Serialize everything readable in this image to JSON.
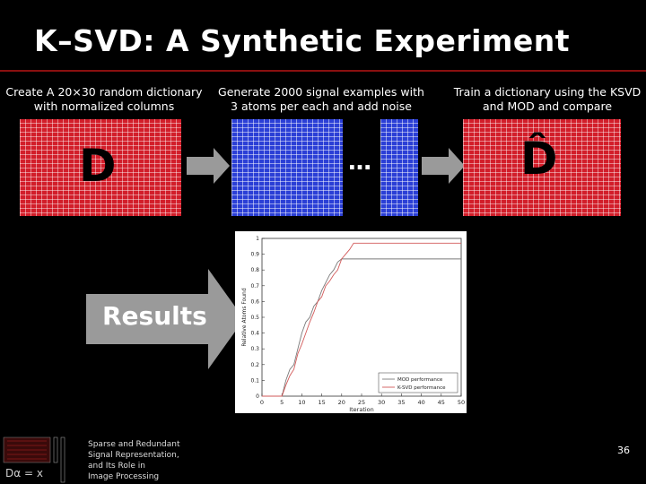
{
  "slide": {
    "title": "K–SVD: A Synthetic Experiment",
    "page_number": "36"
  },
  "steps": [
    {
      "caption_line1": "Create A 20×30 random dictionary",
      "caption_line2": "with normalized columns",
      "symbol": "D"
    },
    {
      "caption_line1": "Generate 2000 signal examples with",
      "caption_line2": "3 atoms per each and add noise",
      "symbol": "…"
    },
    {
      "caption_line1": "Train a dictionary using the KSVD",
      "caption_line2": "and MOD and compare",
      "symbol": "D̂"
    }
  ],
  "results_label": "Results",
  "footer": {
    "line1": "Sparse and Redundant",
    "line2": "Signal Representation,",
    "line3": "and Its Role in",
    "line4": "Image Processing",
    "logo_text": "Dα = x"
  },
  "colors": {
    "dictionary_red": "#d21e2a",
    "signals_blue": "#2b3fd6",
    "arrow_gray": "#9a9a9a",
    "rule_red": "#8a1010"
  },
  "chart_data": {
    "type": "line",
    "title": "",
    "xlabel": "Iteration",
    "ylabel": "Relative Atoms Found",
    "xlim": [
      0,
      50
    ],
    "ylim": [
      0,
      1
    ],
    "xticks": [
      "0",
      "5",
      "10",
      "15",
      "20",
      "25",
      "30",
      "35",
      "40",
      "45",
      "50"
    ],
    "yticks": [
      "0",
      "0.1",
      "0.2",
      "0.3",
      "0.4",
      "0.5",
      "0.6",
      "0.7",
      "0.8",
      "0.9",
      "1"
    ],
    "legend_placement": "bottom-right",
    "series": [
      {
        "name": "MOD performance",
        "color": "#7a7a7a",
        "x": [
          0,
          5,
          6,
          7,
          8,
          9,
          10,
          11,
          12,
          13,
          14,
          15,
          16,
          17,
          18,
          19,
          20,
          22,
          24,
          26,
          27,
          28,
          30,
          35,
          40,
          45,
          50
        ],
        "y": [
          0,
          0,
          0.1,
          0.17,
          0.2,
          0.3,
          0.4,
          0.47,
          0.5,
          0.57,
          0.6,
          0.67,
          0.72,
          0.77,
          0.8,
          0.85,
          0.87,
          0.87,
          0.87,
          0.87,
          0.87,
          0.87,
          0.87,
          0.87,
          0.87,
          0.87,
          0.87
        ]
      },
      {
        "name": "K-SVD performance",
        "color": "#d25a5a",
        "x": [
          0,
          5,
          6,
          7,
          8,
          9,
          10,
          11,
          12,
          13,
          14,
          15,
          16,
          17,
          18,
          19,
          20,
          21,
          22,
          23,
          25,
          27,
          28,
          29,
          30,
          35,
          40,
          45,
          50
        ],
        "y": [
          0,
          0,
          0.07,
          0.13,
          0.17,
          0.27,
          0.33,
          0.4,
          0.47,
          0.53,
          0.6,
          0.63,
          0.7,
          0.73,
          0.77,
          0.8,
          0.87,
          0.9,
          0.93,
          0.97,
          0.97,
          0.97,
          0.97,
          0.97,
          0.97,
          0.97,
          0.97,
          0.97,
          0.97
        ]
      }
    ]
  }
}
